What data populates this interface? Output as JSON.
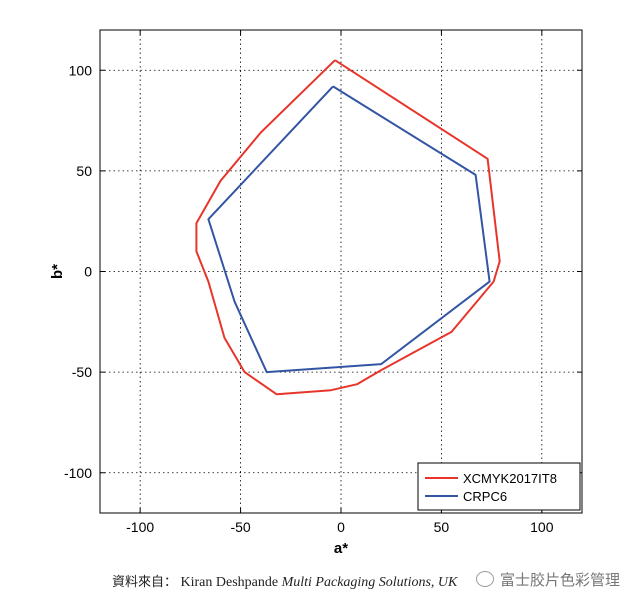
{
  "chart_data": {
    "type": "line",
    "xlabel": "a*",
    "ylabel": "b*",
    "xlim": [
      -120,
      120
    ],
    "ylim": [
      -120,
      120
    ],
    "xticks": [
      -100,
      -50,
      0,
      50,
      100
    ],
    "yticks": [
      -100,
      -50,
      0,
      50,
      100
    ],
    "grid": true,
    "legend_position": "bottom-right",
    "series": [
      {
        "name": "XCMYK2017IT8",
        "color": "#e8352b",
        "x": [
          -3,
          73,
          79,
          76,
          55,
          20,
          8,
          -5,
          -32,
          -48,
          -58,
          -66,
          -72,
          -72,
          -60,
          -40,
          -3
        ],
        "y": [
          105,
          56,
          5,
          -5,
          -30,
          -49,
          -56,
          -59,
          -61,
          -50,
          -33,
          -5,
          10,
          24,
          45,
          69,
          105
        ]
      },
      {
        "name": "CRPC6",
        "color": "#3455a4",
        "x": [
          -4,
          67,
          74,
          20,
          -37,
          -53,
          -66,
          -4
        ],
        "y": [
          92,
          48,
          -5,
          -46,
          -50,
          -15,
          26,
          92
        ]
      }
    ]
  },
  "caption": {
    "prefix": "資料來自：",
    "author": "Kiran Deshpande",
    "organization": "Multi Packaging Solutions, UK"
  },
  "watermark": {
    "text": "富士胶片色彩管理"
  }
}
